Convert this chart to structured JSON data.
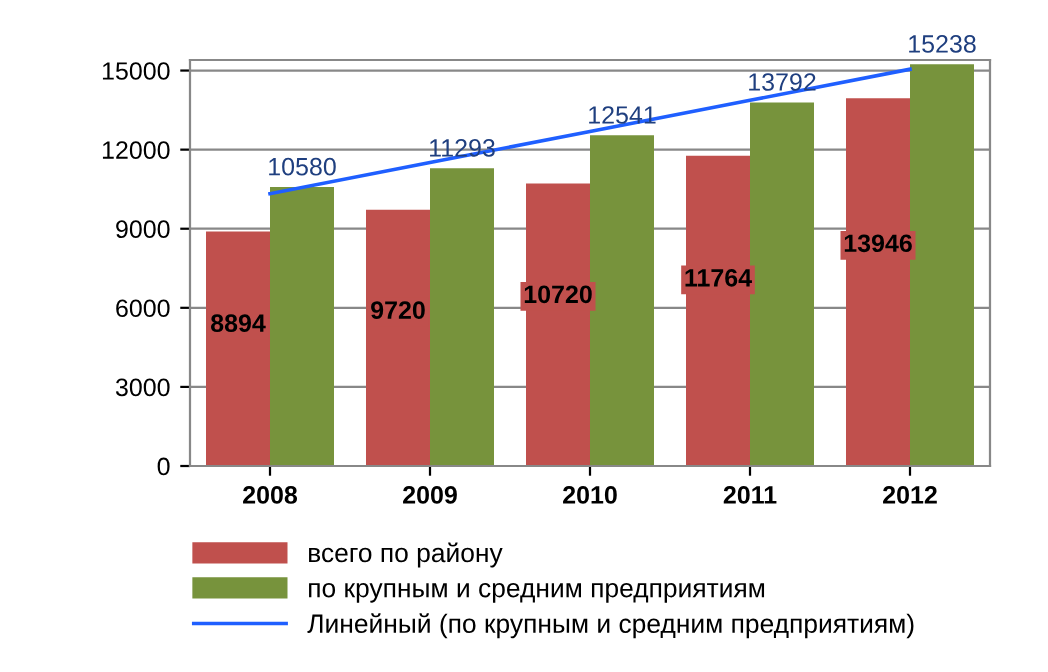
{
  "chart_data": {
    "type": "bar",
    "categories": [
      "2008",
      "2009",
      "2010",
      "2011",
      "2012"
    ],
    "series": [
      {
        "name": "всего по району",
        "color": "#c0504d",
        "values": [
          8894,
          9720,
          10720,
          11764,
          13946
        ]
      },
      {
        "name": "по крупным и средним предприятиям",
        "color": "#77933c",
        "values": [
          10580,
          11293,
          12541,
          13792,
          15238
        ]
      },
      {
        "name": "Линейный (по крупным и средним предприятиям)",
        "type": "line",
        "color": "#1f5fff",
        "values": [
          10330,
          11510,
          12690,
          13870,
          15050
        ],
        "value_labels": [
          null,
          null,
          null,
          null,
          null
        ]
      }
    ],
    "ylim": [
      0,
      15400
    ],
    "yticks": [
      0,
      3000,
      6000,
      9000,
      12000,
      15000
    ],
    "grid": "y",
    "legend": "bottom",
    "data_labels": true
  }
}
